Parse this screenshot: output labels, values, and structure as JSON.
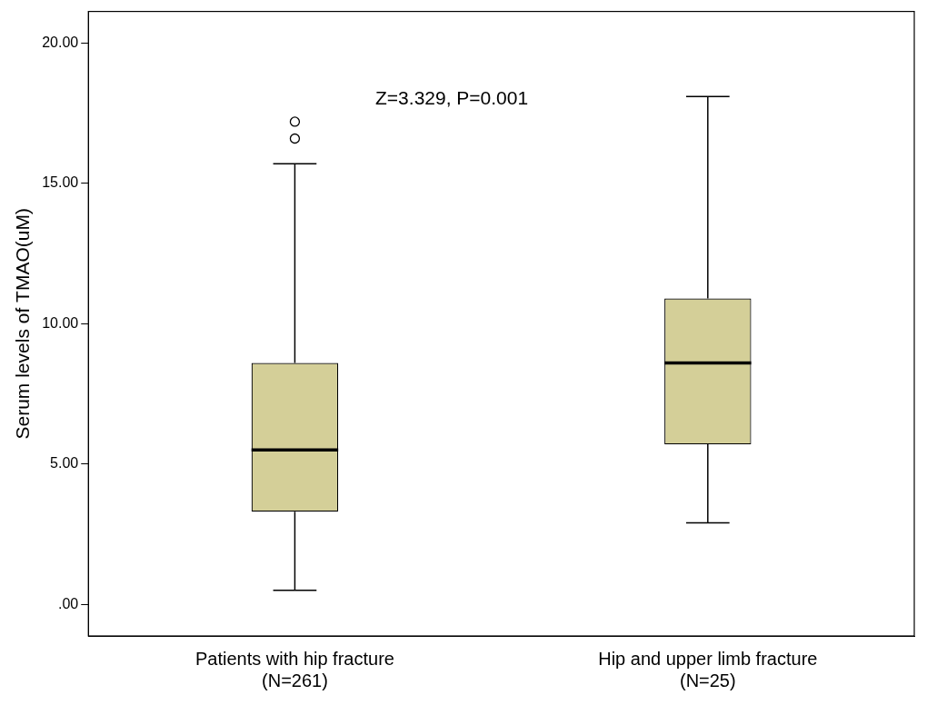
{
  "chart_data": {
    "type": "box",
    "y_label": "Serum levels of TMAO(uM)",
    "annotation": "Z=3.329, P=0.001",
    "categories": [
      "Patients with hip fracture\n(N=261)",
      "Hip and upper limb fracture\n(N=25)"
    ],
    "boxes": [
      {
        "min": 0.5,
        "q1": 3.3,
        "median": 5.5,
        "q3": 8.6,
        "max": 15.7,
        "outliers": [
          16.6,
          17.2
        ]
      },
      {
        "min": 2.9,
        "q1": 5.7,
        "median": 8.6,
        "q3": 10.9,
        "max": 18.1,
        "outliers": []
      }
    ],
    "color": "#d4cf98",
    "ylim": [
      -1.13,
      21.13
    ],
    "yticks": [
      {
        "value": 0,
        "label": ".00"
      },
      {
        "value": 5,
        "label": "5.00"
      },
      {
        "value": 10,
        "label": "10.00"
      },
      {
        "value": 15,
        "label": "15.00"
      },
      {
        "value": 20,
        "label": "20.00"
      }
    ],
    "grid": false
  }
}
